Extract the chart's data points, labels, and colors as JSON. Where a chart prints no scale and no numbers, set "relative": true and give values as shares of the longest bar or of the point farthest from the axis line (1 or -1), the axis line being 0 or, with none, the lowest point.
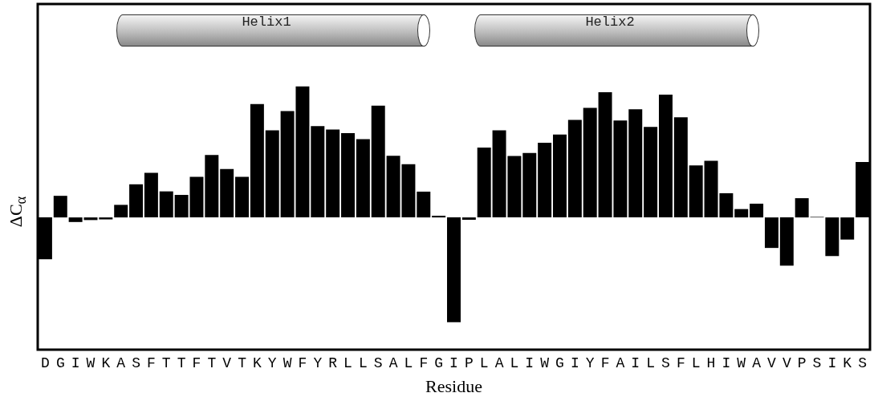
{
  "chart_data": {
    "type": "bar",
    "relative": true,
    "xlabel": "Residue",
    "ylabel": "ΔC$_{α}$",
    "categories": [
      "D",
      "G",
      "I",
      "W",
      "K",
      "A",
      "S",
      "F",
      "T",
      "T",
      "F",
      "T",
      "V",
      "T",
      "K",
      "Y",
      "W",
      "F",
      "Y",
      "R",
      "L",
      "L",
      "S",
      "A",
      "L",
      "F",
      "G",
      "I",
      "P",
      "L",
      "A",
      "L",
      "I",
      "W",
      "G",
      "I",
      "Y",
      "F",
      "A",
      "I",
      "L",
      "S",
      "F",
      "L",
      "H",
      "I",
      "W",
      "A",
      "V",
      "V",
      "P",
      "S",
      "I",
      "K",
      "S"
    ],
    "values": [
      -0.32,
      0.165,
      -0.035,
      -0.02,
      -0.015,
      0.096,
      0.253,
      0.341,
      0.199,
      0.172,
      0.31,
      0.477,
      0.37,
      0.31,
      0.866,
      0.665,
      0.812,
      1,
      0.697,
      0.672,
      0.644,
      0.598,
      0.854,
      0.471,
      0.406,
      0.197,
      0.013,
      -0.8,
      -0.018,
      0.534,
      0.666,
      0.47,
      0.492,
      0.571,
      0.633,
      0.745,
      0.837,
      0.956,
      0.741,
      0.826,
      0.692,
      0.938,
      0.765,
      0.398,
      0.433,
      0.185,
      0.064,
      0.105,
      -0.233,
      -0.369,
      0.147,
      0.004,
      -0.295,
      -0.169,
      0.424
    ],
    "color": "#000000",
    "annotations": [
      "Helix1",
      "Helix2"
    ],
    "grid": false,
    "legend": false
  }
}
